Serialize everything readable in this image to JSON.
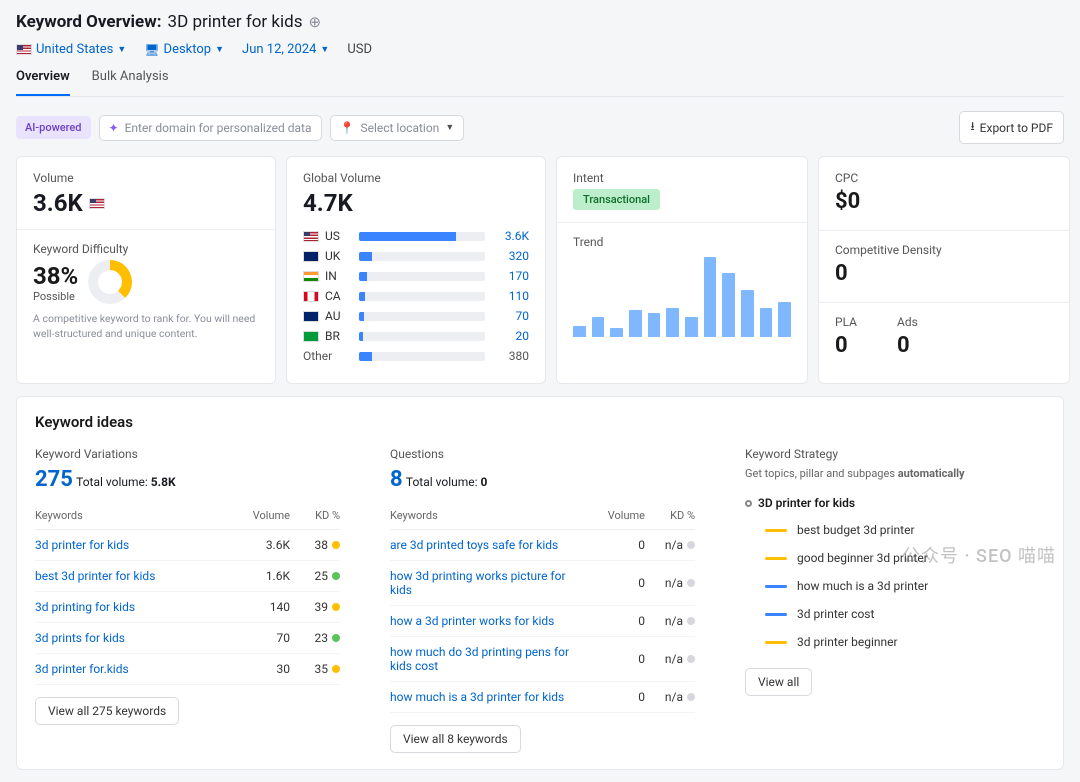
{
  "header": {
    "title_label": "Keyword Overview:",
    "keyword": "3D printer for kids"
  },
  "filters": {
    "country": "United States",
    "device": "Desktop",
    "date": "Jun 12, 2024",
    "currency": "USD"
  },
  "tabs": {
    "overview": "Overview",
    "bulk": "Bulk Analysis"
  },
  "toolbar": {
    "ai_badge": "AI-powered",
    "personalize_placeholder": "Enter domain for personalized data",
    "location_placeholder": "Select location",
    "export_label": "Export to PDF"
  },
  "volume_card": {
    "label": "Volume",
    "value": "3.6K",
    "kd_label": "Keyword Difficulty",
    "kd_value": "38%",
    "kd_possible": "Possible",
    "kd_desc": "A competitive keyword to rank for. You will need well-structured and unique content."
  },
  "global_card": {
    "label": "Global Volume",
    "value": "4.7K",
    "rows": [
      {
        "cc": "US",
        "pct": 77,
        "val": "3.6K",
        "flag": "flag"
      },
      {
        "cc": "UK",
        "pct": 10,
        "val": "320",
        "flag": "flag flag-uk"
      },
      {
        "cc": "IN",
        "pct": 6,
        "val": "170",
        "flag": "flag flag-in"
      },
      {
        "cc": "CA",
        "pct": 5,
        "val": "110",
        "flag": "flag flag-ca"
      },
      {
        "cc": "AU",
        "pct": 4,
        "val": "70",
        "flag": "flag flag-au"
      },
      {
        "cc": "BR",
        "pct": 3,
        "val": "20",
        "flag": "flag flag-br"
      }
    ],
    "other_label": "Other",
    "other_pct": 10,
    "other_val": "380"
  },
  "intent_card": {
    "label": "Intent",
    "value": "Transactional",
    "trend_label": "Trend",
    "trend": [
      12,
      22,
      10,
      30,
      26,
      32,
      22,
      88,
      70,
      52,
      32,
      38
    ]
  },
  "cpc_card": {
    "cpc_label": "CPC",
    "cpc_value": "$0",
    "density_label": "Competitive Density",
    "density_value": "0",
    "pla_label": "PLA",
    "pla_value": "0",
    "ads_label": "Ads",
    "ads_value": "0"
  },
  "ideas": {
    "title": "Keyword ideas",
    "variations": {
      "label": "Keyword Variations",
      "count": "275",
      "total_label": "Total volume:",
      "total_value": "5.8K",
      "col_kw": "Keywords",
      "col_vol": "Volume",
      "col_kd": "KD %",
      "rows": [
        {
          "kw": "3d printer for kids",
          "vol": "3.6K",
          "kd": "38",
          "dot": "#ffbf00"
        },
        {
          "kw": "best 3d printer for kids",
          "vol": "1.6K",
          "kd": "25",
          "dot": "#59c459"
        },
        {
          "kw": "3d printing for kids",
          "vol": "140",
          "kd": "39",
          "dot": "#ffbf00"
        },
        {
          "kw": "3d prints for kids",
          "vol": "70",
          "kd": "23",
          "dot": "#59c459"
        },
        {
          "kw": "3d printer for.kids",
          "vol": "30",
          "kd": "35",
          "dot": "#ffbf00"
        }
      ],
      "view_all": "View all 275 keywords"
    },
    "questions": {
      "label": "Questions",
      "count": "8",
      "total_label": "Total volume:",
      "total_value": "0",
      "col_kw": "Keywords",
      "col_vol": "Volume",
      "col_kd": "KD %",
      "rows": [
        {
          "kw": "are 3d printed toys safe for kids",
          "vol": "0",
          "kd": "n/a"
        },
        {
          "kw": "how 3d printing works picture for kids",
          "vol": "0",
          "kd": "n/a"
        },
        {
          "kw": "how a 3d printer works for kids",
          "vol": "0",
          "kd": "n/a"
        },
        {
          "kw": "how much do 3d printing pens for kids cost",
          "vol": "0",
          "kd": "n/a"
        },
        {
          "kw": "how much is a 3d printer for kids",
          "vol": "0",
          "kd": "n/a"
        }
      ],
      "view_all": "View all 8 keywords"
    },
    "strategy": {
      "label": "Keyword Strategy",
      "desc_pre": "Get topics, pillar and subpages ",
      "desc_strong": "automatically",
      "root": "3D printer for kids",
      "items": [
        {
          "label": "best budget 3d printer",
          "color": "#ffbf00"
        },
        {
          "label": "good beginner 3d printer",
          "color": "#ffbf00"
        },
        {
          "label": "how much is a 3d printer",
          "color": "#3a84ff"
        },
        {
          "label": "3d printer cost",
          "color": "#3a84ff"
        },
        {
          "label": "3d printer beginner",
          "color": "#ffbf00"
        }
      ],
      "view_all": "View all"
    }
  },
  "watermark": "公众号 · SEO 喵喵"
}
